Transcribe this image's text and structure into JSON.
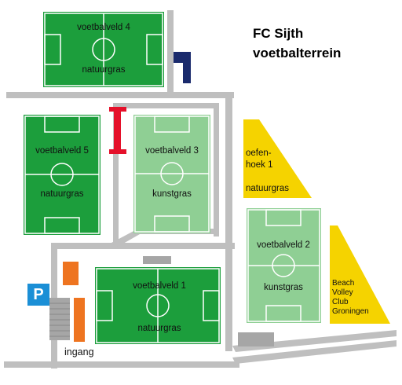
{
  "title": {
    "line1": "FC Sijth",
    "line2": "voetbalterrein"
  },
  "colors": {
    "natural_grass": "#1c9e3c",
    "artificial_grass": "#8fcf94",
    "path": "#bfbfbf",
    "yellow_area": "#f5d300",
    "orange_building": "#ee7420",
    "red_marker": "#e5102a",
    "navy_marker": "#1a2a6c",
    "parking": "#1b8fd6",
    "gray_block": "#a6a6a6"
  },
  "fields": [
    {
      "id": "field4",
      "name": "voetbalveld 4",
      "surface": "natuurgras"
    },
    {
      "id": "field5",
      "name": "voetbalveld 5",
      "surface": "natuurgras"
    },
    {
      "id": "field3",
      "name": "voetbalveld 3",
      "surface": "kunstgras"
    },
    {
      "id": "field2",
      "name": "voetbalveld 2",
      "surface": "kunstgras"
    },
    {
      "id": "field1",
      "name": "voetbalveld 1",
      "surface": "natuurgras"
    }
  ],
  "oefenhoek": {
    "line1": "oefen-",
    "line2": "hoek 1",
    "surface": "natuurgras"
  },
  "beach": {
    "line1": "Beach",
    "line2": "Volley",
    "line3": "Club",
    "line4": "Groningen"
  },
  "parking_label": "P",
  "entrance_label": "ingang",
  "icons": [
    "parking-icon",
    "goal-marker-icon",
    "building-icon"
  ]
}
